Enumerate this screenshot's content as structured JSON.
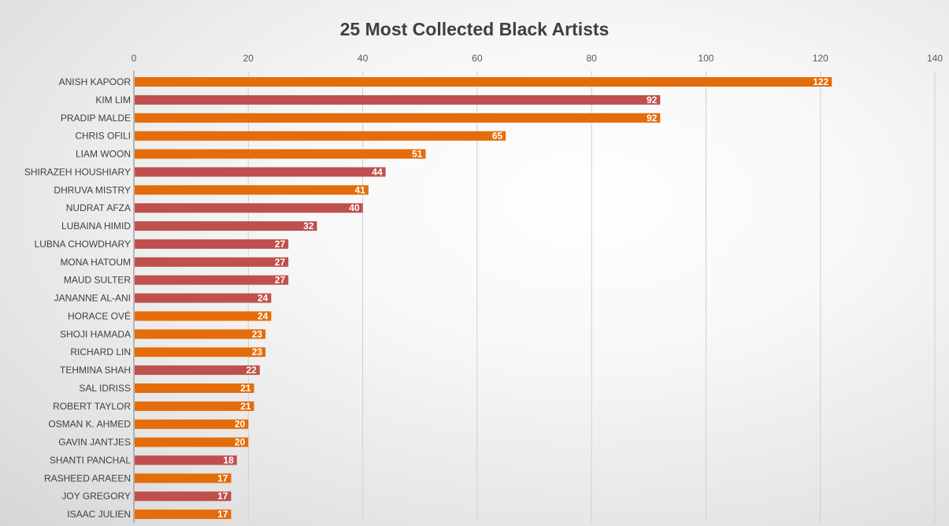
{
  "chart_data": {
    "type": "bar",
    "orientation": "horizontal",
    "title": "25 Most Collected Black Artists",
    "xlabel": "",
    "ylabel": "",
    "xlim": [
      0,
      140
    ],
    "x_ticks": [
      0,
      20,
      40,
      60,
      80,
      100,
      120,
      140
    ],
    "tick_position": "top",
    "grid": true,
    "legend": "none",
    "categories": [
      "ANISH KAPOOR",
      "KIM LIM",
      "PRADIP MALDE",
      "CHRIS OFILI",
      "LIAM WOON",
      "SHIRAZEH HOUSHIARY",
      "DHRUVA MISTRY",
      "NUDRAT AFZA",
      "LUBAINA HIMID",
      "LUBNA CHOWDHARY",
      "MONA HATOUM",
      "MAUD SULTER",
      "JANANNE AL-ANI",
      "HORACE OVÉ",
      "SHOJI HAMADA",
      "RICHARD LIN",
      "TEHMINA SHAH",
      "SAL IDRISS",
      "ROBERT TAYLOR",
      "OSMAN K. AHMED",
      "GAVIN JANTJES",
      "SHANTI PANCHAL",
      "RASHEED ARAEEN",
      "JOY GREGORY",
      "ISAAC JULIEN"
    ],
    "values": [
      122,
      92,
      92,
      65,
      51,
      44,
      41,
      40,
      32,
      27,
      27,
      27,
      24,
      24,
      23,
      23,
      22,
      21,
      21,
      20,
      20,
      18,
      17,
      17,
      17
    ],
    "bar_colors": [
      "orange",
      "red",
      "orange",
      "orange",
      "orange",
      "red",
      "orange",
      "red",
      "red",
      "red",
      "red",
      "red",
      "red",
      "orange",
      "orange",
      "orange",
      "red",
      "orange",
      "orange",
      "orange",
      "orange",
      "red",
      "orange",
      "red",
      "orange"
    ],
    "palette": {
      "orange": "#e46c0a",
      "red": "#c0504d",
      "grid": "#d0d0d0",
      "axis": "#7f7f7f"
    }
  }
}
